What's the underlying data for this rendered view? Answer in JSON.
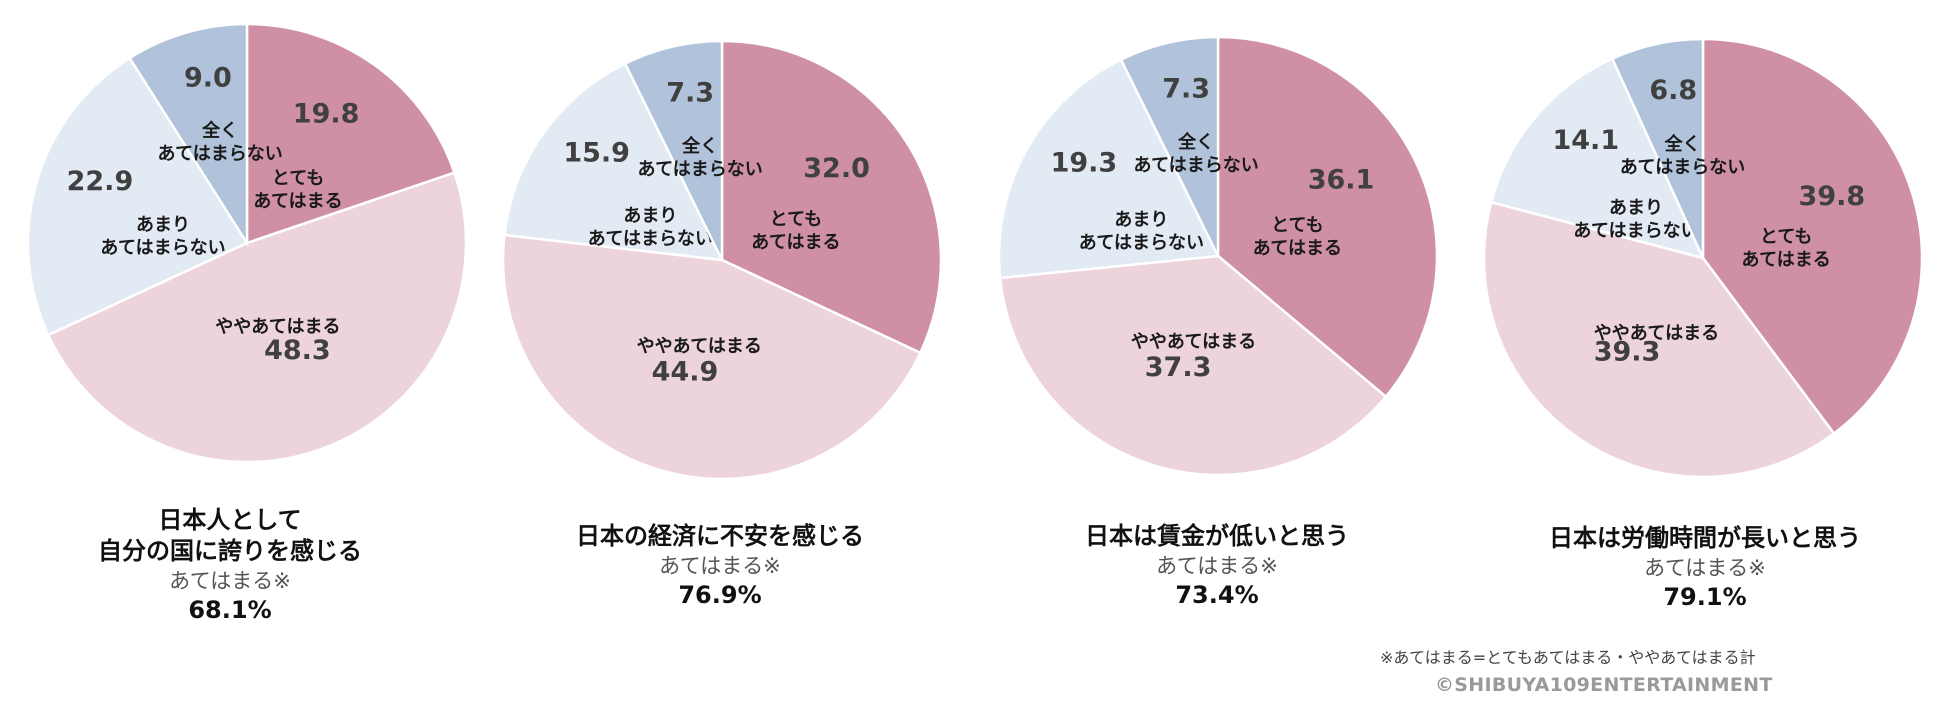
{
  "colors": {
    "とても あてはまる": "#cf8fa4",
    "ややあてはまる": "#ecd3dc",
    "あまり あてはまらない": "#e2eaf3",
    "全く あてはまらない": "#b0c3da",
    "value_text": "#404040",
    "label_text": "#1a1a1a"
  },
  "chart_data": [
    {
      "type": "pie",
      "title": "日本人として\n自分の国に誇りを感じる",
      "subtitle": "あてはまる※",
      "total": "68.1%",
      "slices": [
        {
          "label": "とても\nあてはまる",
          "value": 19.8
        },
        {
          "label": "ややあてはまる",
          "value": 48.3
        },
        {
          "label": "あまり\nあてはまらない",
          "value": 22.9
        },
        {
          "label": "全く\nあてはまらない",
          "value": 9.0
        }
      ]
    },
    {
      "type": "pie",
      "title": "日本の経済に不安を感じる",
      "subtitle": "あてはまる※",
      "total": "76.9%",
      "slices": [
        {
          "label": "とても\nあてはまる",
          "value": 32.0
        },
        {
          "label": "ややあてはまる",
          "value": 44.9
        },
        {
          "label": "あまり\nあてはまらない",
          "value": 15.9
        },
        {
          "label": "全く\nあてはまらない",
          "value": 7.3
        }
      ]
    },
    {
      "type": "pie",
      "title": "日本は賃金が低いと思う",
      "subtitle": "あてはまる※",
      "total": "73.4%",
      "slices": [
        {
          "label": "とても\nあてはまる",
          "value": 36.1
        },
        {
          "label": "ややあてはまる",
          "value": 37.3
        },
        {
          "label": "あまり\nあてはまらない",
          "value": 19.3
        },
        {
          "label": "全く\nあてはまらない",
          "value": 7.3
        }
      ]
    },
    {
      "type": "pie",
      "title": "日本は労働時間が長いと思う",
      "subtitle": "あてはまる※",
      "total": "79.1%",
      "slices": [
        {
          "label": "とても\nあてはまる",
          "value": 39.8
        },
        {
          "label": "ややあてはまる",
          "value": 39.3
        },
        {
          "label": "あまり\nあてはまらない",
          "value": 14.1
        },
        {
          "label": "全く\nあてはまらない",
          "value": 6.8
        }
      ]
    }
  ],
  "footnote": "※あてはまる=とてもあてはまる・ややあてはまる計",
  "copyright": "©SHIBUYA109ENTERTAINMENT"
}
